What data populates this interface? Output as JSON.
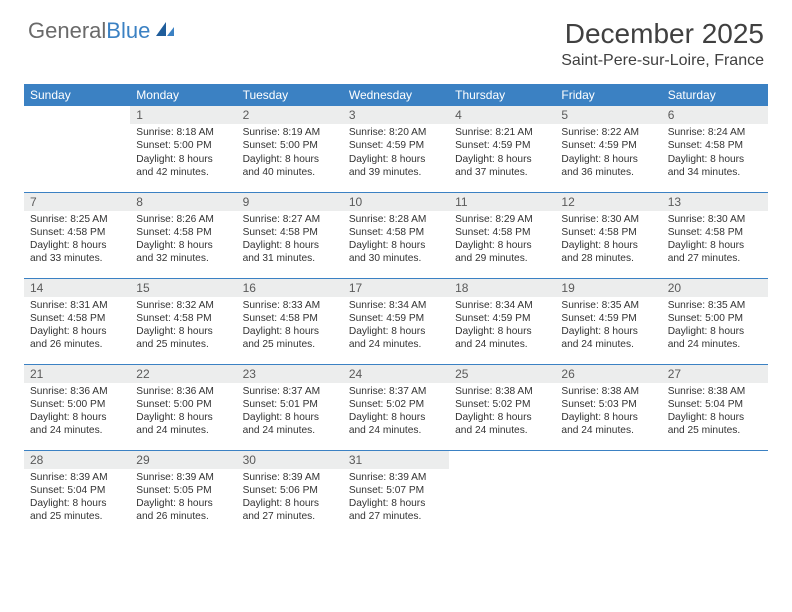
{
  "brand": {
    "name_part1": "General",
    "name_part2": "Blue"
  },
  "title": "December 2025",
  "location": "Saint-Pere-sur-Loire, France",
  "colors": {
    "header_bg": "#3b81c3",
    "header_text": "#ffffff",
    "daynum_bg": "#eceded",
    "text": "#333333",
    "rule": "#3b81c3",
    "background": "#ffffff"
  },
  "typography": {
    "title_fontsize": 28,
    "location_fontsize": 16,
    "header_fontsize": 12,
    "cell_fontsize": 10.2
  },
  "weekdays": [
    "Sunday",
    "Monday",
    "Tuesday",
    "Wednesday",
    "Thursday",
    "Friday",
    "Saturday"
  ],
  "weeks": [
    [
      {
        "blank": true
      },
      {
        "day": "1",
        "sunrise": "Sunrise: 8:18 AM",
        "sunset": "Sunset: 5:00 PM",
        "daylight1": "Daylight: 8 hours",
        "daylight2": "and 42 minutes."
      },
      {
        "day": "2",
        "sunrise": "Sunrise: 8:19 AM",
        "sunset": "Sunset: 5:00 PM",
        "daylight1": "Daylight: 8 hours",
        "daylight2": "and 40 minutes."
      },
      {
        "day": "3",
        "sunrise": "Sunrise: 8:20 AM",
        "sunset": "Sunset: 4:59 PM",
        "daylight1": "Daylight: 8 hours",
        "daylight2": "and 39 minutes."
      },
      {
        "day": "4",
        "sunrise": "Sunrise: 8:21 AM",
        "sunset": "Sunset: 4:59 PM",
        "daylight1": "Daylight: 8 hours",
        "daylight2": "and 37 minutes."
      },
      {
        "day": "5",
        "sunrise": "Sunrise: 8:22 AM",
        "sunset": "Sunset: 4:59 PM",
        "daylight1": "Daylight: 8 hours",
        "daylight2": "and 36 minutes."
      },
      {
        "day": "6",
        "sunrise": "Sunrise: 8:24 AM",
        "sunset": "Sunset: 4:58 PM",
        "daylight1": "Daylight: 8 hours",
        "daylight2": "and 34 minutes."
      }
    ],
    [
      {
        "day": "7",
        "sunrise": "Sunrise: 8:25 AM",
        "sunset": "Sunset: 4:58 PM",
        "daylight1": "Daylight: 8 hours",
        "daylight2": "and 33 minutes."
      },
      {
        "day": "8",
        "sunrise": "Sunrise: 8:26 AM",
        "sunset": "Sunset: 4:58 PM",
        "daylight1": "Daylight: 8 hours",
        "daylight2": "and 32 minutes."
      },
      {
        "day": "9",
        "sunrise": "Sunrise: 8:27 AM",
        "sunset": "Sunset: 4:58 PM",
        "daylight1": "Daylight: 8 hours",
        "daylight2": "and 31 minutes."
      },
      {
        "day": "10",
        "sunrise": "Sunrise: 8:28 AM",
        "sunset": "Sunset: 4:58 PM",
        "daylight1": "Daylight: 8 hours",
        "daylight2": "and 30 minutes."
      },
      {
        "day": "11",
        "sunrise": "Sunrise: 8:29 AM",
        "sunset": "Sunset: 4:58 PM",
        "daylight1": "Daylight: 8 hours",
        "daylight2": "and 29 minutes."
      },
      {
        "day": "12",
        "sunrise": "Sunrise: 8:30 AM",
        "sunset": "Sunset: 4:58 PM",
        "daylight1": "Daylight: 8 hours",
        "daylight2": "and 28 minutes."
      },
      {
        "day": "13",
        "sunrise": "Sunrise: 8:30 AM",
        "sunset": "Sunset: 4:58 PM",
        "daylight1": "Daylight: 8 hours",
        "daylight2": "and 27 minutes."
      }
    ],
    [
      {
        "day": "14",
        "sunrise": "Sunrise: 8:31 AM",
        "sunset": "Sunset: 4:58 PM",
        "daylight1": "Daylight: 8 hours",
        "daylight2": "and 26 minutes."
      },
      {
        "day": "15",
        "sunrise": "Sunrise: 8:32 AM",
        "sunset": "Sunset: 4:58 PM",
        "daylight1": "Daylight: 8 hours",
        "daylight2": "and 25 minutes."
      },
      {
        "day": "16",
        "sunrise": "Sunrise: 8:33 AM",
        "sunset": "Sunset: 4:58 PM",
        "daylight1": "Daylight: 8 hours",
        "daylight2": "and 25 minutes."
      },
      {
        "day": "17",
        "sunrise": "Sunrise: 8:34 AM",
        "sunset": "Sunset: 4:59 PM",
        "daylight1": "Daylight: 8 hours",
        "daylight2": "and 24 minutes."
      },
      {
        "day": "18",
        "sunrise": "Sunrise: 8:34 AM",
        "sunset": "Sunset: 4:59 PM",
        "daylight1": "Daylight: 8 hours",
        "daylight2": "and 24 minutes."
      },
      {
        "day": "19",
        "sunrise": "Sunrise: 8:35 AM",
        "sunset": "Sunset: 4:59 PM",
        "daylight1": "Daylight: 8 hours",
        "daylight2": "and 24 minutes."
      },
      {
        "day": "20",
        "sunrise": "Sunrise: 8:35 AM",
        "sunset": "Sunset: 5:00 PM",
        "daylight1": "Daylight: 8 hours",
        "daylight2": "and 24 minutes."
      }
    ],
    [
      {
        "day": "21",
        "sunrise": "Sunrise: 8:36 AM",
        "sunset": "Sunset: 5:00 PM",
        "daylight1": "Daylight: 8 hours",
        "daylight2": "and 24 minutes."
      },
      {
        "day": "22",
        "sunrise": "Sunrise: 8:36 AM",
        "sunset": "Sunset: 5:00 PM",
        "daylight1": "Daylight: 8 hours",
        "daylight2": "and 24 minutes."
      },
      {
        "day": "23",
        "sunrise": "Sunrise: 8:37 AM",
        "sunset": "Sunset: 5:01 PM",
        "daylight1": "Daylight: 8 hours",
        "daylight2": "and 24 minutes."
      },
      {
        "day": "24",
        "sunrise": "Sunrise: 8:37 AM",
        "sunset": "Sunset: 5:02 PM",
        "daylight1": "Daylight: 8 hours",
        "daylight2": "and 24 minutes."
      },
      {
        "day": "25",
        "sunrise": "Sunrise: 8:38 AM",
        "sunset": "Sunset: 5:02 PM",
        "daylight1": "Daylight: 8 hours",
        "daylight2": "and 24 minutes."
      },
      {
        "day": "26",
        "sunrise": "Sunrise: 8:38 AM",
        "sunset": "Sunset: 5:03 PM",
        "daylight1": "Daylight: 8 hours",
        "daylight2": "and 24 minutes."
      },
      {
        "day": "27",
        "sunrise": "Sunrise: 8:38 AM",
        "sunset": "Sunset: 5:04 PM",
        "daylight1": "Daylight: 8 hours",
        "daylight2": "and 25 minutes."
      }
    ],
    [
      {
        "day": "28",
        "sunrise": "Sunrise: 8:39 AM",
        "sunset": "Sunset: 5:04 PM",
        "daylight1": "Daylight: 8 hours",
        "daylight2": "and 25 minutes."
      },
      {
        "day": "29",
        "sunrise": "Sunrise: 8:39 AM",
        "sunset": "Sunset: 5:05 PM",
        "daylight1": "Daylight: 8 hours",
        "daylight2": "and 26 minutes."
      },
      {
        "day": "30",
        "sunrise": "Sunrise: 8:39 AM",
        "sunset": "Sunset: 5:06 PM",
        "daylight1": "Daylight: 8 hours",
        "daylight2": "and 27 minutes."
      },
      {
        "day": "31",
        "sunrise": "Sunrise: 8:39 AM",
        "sunset": "Sunset: 5:07 PM",
        "daylight1": "Daylight: 8 hours",
        "daylight2": "and 27 minutes."
      },
      {
        "blank": true
      },
      {
        "blank": true
      },
      {
        "blank": true
      }
    ]
  ]
}
